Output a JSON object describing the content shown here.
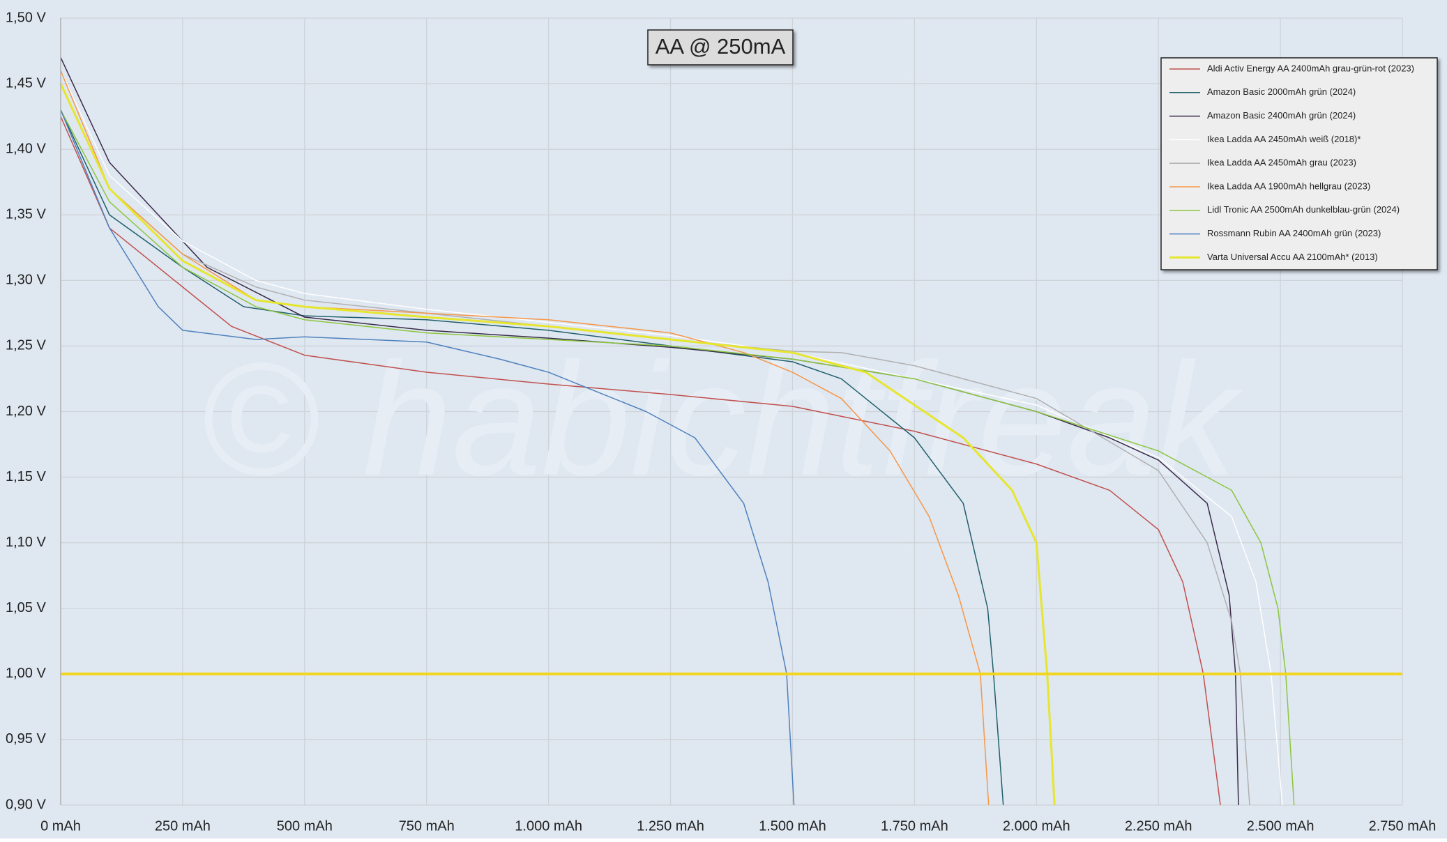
{
  "chart_data": {
    "type": "line",
    "title": "AA @ 250mA",
    "watermark": "© habichtfreak",
    "xlim": [
      0,
      2750
    ],
    "ylim": [
      0.9,
      1.5
    ],
    "xticks": [
      {
        "value": 0,
        "label": "0 mAh"
      },
      {
        "value": 250,
        "label": "250 mAh"
      },
      {
        "value": 500,
        "label": "500 mAh"
      },
      {
        "value": 750,
        "label": "750 mAh"
      },
      {
        "value": 1000,
        "label": "1.000 mAh"
      },
      {
        "value": 1250,
        "label": "1.250 mAh"
      },
      {
        "value": 1500,
        "label": "1.500 mAh"
      },
      {
        "value": 1750,
        "label": "1.750 mAh"
      },
      {
        "value": 2000,
        "label": "2.000 mAh"
      },
      {
        "value": 2250,
        "label": "2.250 mAh"
      },
      {
        "value": 2500,
        "label": "2.500 mAh"
      },
      {
        "value": 2750,
        "label": "2.750 mAh"
      }
    ],
    "yticks": [
      {
        "value": 0.9,
        "label": "0,90 V"
      },
      {
        "value": 0.95,
        "label": "0,95 V"
      },
      {
        "value": 1.0,
        "label": "1,00 V"
      },
      {
        "value": 1.05,
        "label": "1,05 V"
      },
      {
        "value": 1.1,
        "label": "1,10 V"
      },
      {
        "value": 1.15,
        "label": "1,15 V"
      },
      {
        "value": 1.2,
        "label": "1,20 V"
      },
      {
        "value": 1.25,
        "label": "1,25 V"
      },
      {
        "value": 1.3,
        "label": "1,30 V"
      },
      {
        "value": 1.35,
        "label": "1,35 V"
      },
      {
        "value": 1.4,
        "label": "1,40 V"
      },
      {
        "value": 1.45,
        "label": "1,45 V"
      },
      {
        "value": 1.5,
        "label": "1,50 V"
      }
    ],
    "grid": true,
    "legend": "top-right",
    "reference_line": {
      "value": 1.0,
      "color": "#f2d51c"
    },
    "series": [
      {
        "name": "Aldi Activ Energy AA 2400mAh grau-grün-rot (2023)",
        "color": "#c0504d",
        "line_width": 1.5,
        "x": [
          0,
          100,
          250,
          350,
          500,
          750,
          1000,
          1250,
          1500,
          1750,
          2000,
          2150,
          2250,
          2300,
          2342,
          2377
        ],
        "values": [
          1.425,
          1.34,
          1.295,
          1.265,
          1.243,
          1.23,
          1.221,
          1.213,
          1.204,
          1.185,
          1.16,
          1.14,
          1.11,
          1.07,
          1.0,
          0.9
        ]
      },
      {
        "name": "Amazon Basic 2000mAh grün (2024)",
        "color": "#1f5f6b",
        "line_width": 1.5,
        "x": [
          0,
          100,
          250,
          375,
          500,
          750,
          1000,
          1250,
          1500,
          1600,
          1750,
          1850,
          1900,
          1912,
          1932
        ],
        "values": [
          1.43,
          1.35,
          1.31,
          1.28,
          1.273,
          1.27,
          1.262,
          1.25,
          1.238,
          1.225,
          1.18,
          1.13,
          1.05,
          1.0,
          0.9
        ]
      },
      {
        "name": "Amazon Basic 2400mAh grün (2024)",
        "color": "#3a2a4a",
        "line_width": 1.5,
        "x": [
          0,
          100,
          200,
          300,
          500,
          750,
          1000,
          1250,
          1500,
          1750,
          2000,
          2150,
          2250,
          2350,
          2395,
          2408,
          2414
        ],
        "values": [
          1.47,
          1.39,
          1.35,
          1.31,
          1.272,
          1.262,
          1.256,
          1.249,
          1.24,
          1.225,
          1.2,
          1.18,
          1.163,
          1.13,
          1.06,
          1.0,
          0.9
        ]
      },
      {
        "name": "Ikea Ladda AA 2450mAh weiß (2018)*",
        "color": "#ffffff",
        "line_width": 1.5,
        "x": [
          0,
          100,
          250,
          400,
          500,
          750,
          1000,
          1250,
          1500,
          1750,
          2000,
          2250,
          2400,
          2450,
          2481,
          2504
        ],
        "values": [
          1.46,
          1.38,
          1.33,
          1.3,
          1.29,
          1.278,
          1.268,
          1.258,
          1.245,
          1.225,
          1.205,
          1.165,
          1.12,
          1.07,
          1.0,
          0.9
        ]
      },
      {
        "name": "Ikea Ladda AA 2450mAh grau (2023)",
        "color": "#b0b0b0",
        "line_width": 1.5,
        "x": [
          0,
          100,
          250,
          400,
          500,
          750,
          1000,
          1250,
          1500,
          1600,
          1750,
          2000,
          2250,
          2350,
          2400,
          2418,
          2437
        ],
        "values": [
          1.45,
          1.37,
          1.32,
          1.295,
          1.285,
          1.275,
          1.265,
          1.255,
          1.246,
          1.245,
          1.235,
          1.21,
          1.155,
          1.1,
          1.04,
          1.0,
          0.9
        ]
      },
      {
        "name": "Ikea Ladda AA 1900mAh hellgrau (2023)",
        "color": "#f79646",
        "line_width": 1.5,
        "x": [
          0,
          100,
          250,
          400,
          500,
          750,
          1000,
          1250,
          1400,
          1500,
          1600,
          1700,
          1780,
          1840,
          1885,
          1902
        ],
        "values": [
          1.46,
          1.37,
          1.32,
          1.285,
          1.28,
          1.275,
          1.27,
          1.26,
          1.245,
          1.23,
          1.21,
          1.17,
          1.12,
          1.06,
          1.0,
          0.9
        ]
      },
      {
        "name": "Lidl Tronic AA 2500mAh dunkelblau-grün (2024)",
        "color": "#8cc63f",
        "line_width": 1.5,
        "x": [
          0,
          100,
          250,
          400,
          500,
          750,
          1000,
          1250,
          1500,
          1750,
          2000,
          2250,
          2400,
          2460,
          2495,
          2511,
          2528
        ],
        "values": [
          1.43,
          1.36,
          1.31,
          1.28,
          1.27,
          1.26,
          1.255,
          1.25,
          1.24,
          1.225,
          1.2,
          1.17,
          1.14,
          1.1,
          1.05,
          1.0,
          0.9
        ]
      },
      {
        "name": "Rossmann Rubin AA 2400mAh grün (2023)",
        "color": "#4f81bd",
        "line_width": 1.5,
        "x": [
          0,
          100,
          200,
          250,
          400,
          500,
          750,
          900,
          1000,
          1100,
          1200,
          1300,
          1400,
          1450,
          1488,
          1503
        ],
        "values": [
          1.43,
          1.34,
          1.28,
          1.262,
          1.255,
          1.257,
          1.253,
          1.24,
          1.23,
          1.215,
          1.2,
          1.18,
          1.13,
          1.07,
          1.0,
          0.9
        ]
      },
      {
        "name": "Varta Universal Accu AA 2100mAh* (2013)",
        "color": "#e6e62e",
        "line_width": 3,
        "x": [
          0,
          100,
          250,
          400,
          500,
          750,
          1000,
          1250,
          1500,
          1650,
          1750,
          1850,
          1950,
          2000,
          2022,
          2037
        ],
        "values": [
          1.45,
          1.37,
          1.315,
          1.285,
          1.28,
          1.272,
          1.265,
          1.255,
          1.245,
          1.23,
          1.205,
          1.18,
          1.14,
          1.1,
          1.0,
          0.9
        ]
      }
    ]
  }
}
